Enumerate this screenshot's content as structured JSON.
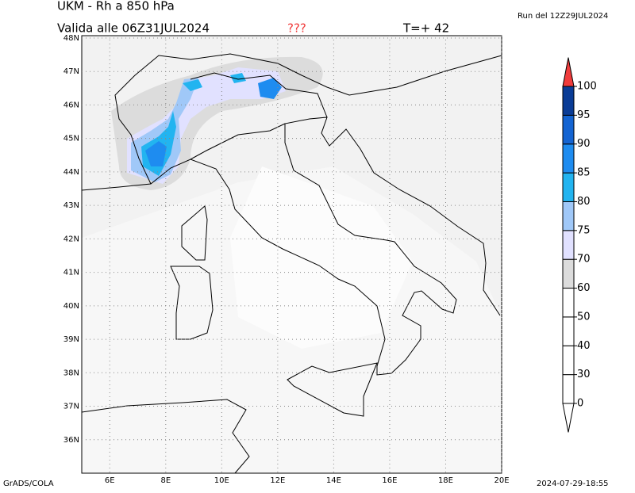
{
  "title": "UKM - Rh a 850 hPa",
  "run": "Run del 12Z29JUL2024",
  "valid": "Valida alle 06Z31JUL2024",
  "flag": "???",
  "step": "T=+ 42",
  "map": {
    "lonlim": [
      5,
      20
    ],
    "latlim": [
      35,
      48.07
    ],
    "lon_ticks": [
      {
        "value": 6,
        "label": "6E"
      },
      {
        "value": 8,
        "label": "8E"
      },
      {
        "value": 10,
        "label": "10E"
      },
      {
        "value": 12,
        "label": "12E"
      },
      {
        "value": 14,
        "label": "14E"
      },
      {
        "value": 16,
        "label": "16E"
      },
      {
        "value": 18,
        "label": "18E"
      },
      {
        "value": 20,
        "label": "20E"
      }
    ],
    "lat_ticks": [
      {
        "value": 36,
        "label": "36N"
      },
      {
        "value": 37,
        "label": "37N"
      },
      {
        "value": 38,
        "label": "38N"
      },
      {
        "value": 39,
        "label": "39N"
      },
      {
        "value": 40,
        "label": "40N"
      },
      {
        "value": 41,
        "label": "41N"
      },
      {
        "value": 42,
        "label": "42N"
      },
      {
        "value": 43,
        "label": "43N"
      },
      {
        "value": 44,
        "label": "44N"
      },
      {
        "value": 45,
        "label": "45N"
      },
      {
        "value": 46,
        "label": "46N"
      },
      {
        "value": 47,
        "label": "47N"
      },
      {
        "value": 48,
        "label": "48N"
      }
    ]
  },
  "colorbar": {
    "levels": [
      0,
      30,
      40,
      50,
      60,
      70,
      75,
      80,
      85,
      90,
      95,
      100
    ],
    "colors": [
      "#ffffff",
      "#ffffff",
      "#ffffff",
      "#ffffff",
      "#ffffff",
      "#dcdcdc",
      "#e1e1ff",
      "#a0c8f8",
      "#22b4f0",
      "#1e8cf0",
      "#1464d2",
      "#0a3c96",
      "#f03c3c"
    ]
  },
  "footer_left": "GrADS/COLA",
  "footer_right": "2024-07-29-18:55"
}
